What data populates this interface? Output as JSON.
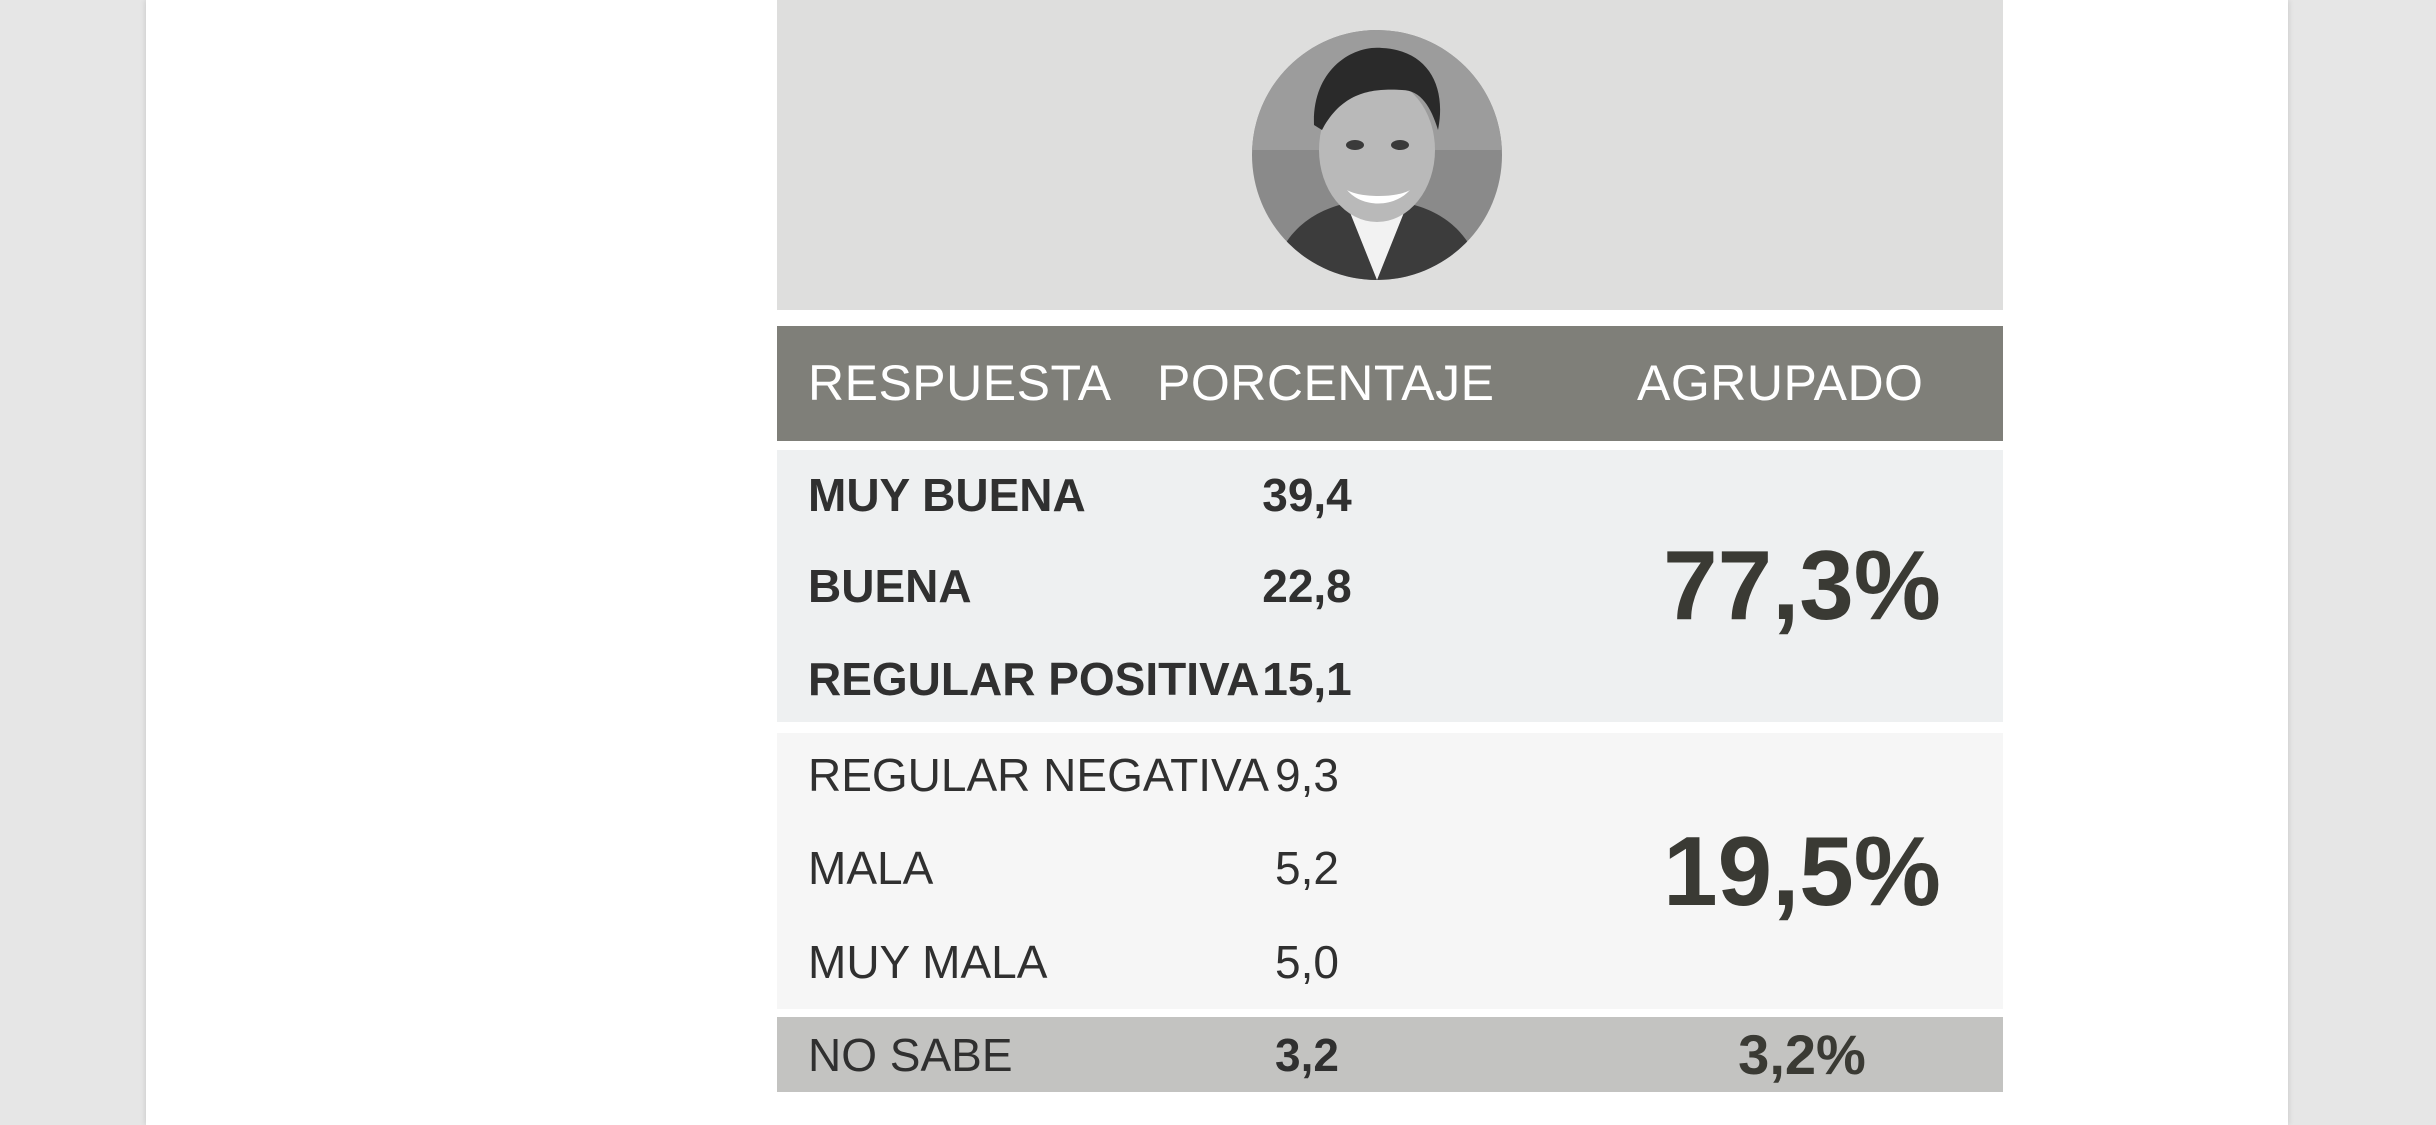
{
  "table": {
    "headers": {
      "respuesta": "RESPUESTA",
      "porcentaje": "PORCENTAJE",
      "agrupado": "AGRUPADO"
    },
    "groups": [
      {
        "rows": [
          {
            "label": "MUY BUENA",
            "value": "39,4"
          },
          {
            "label": "BUENA",
            "value": "22,8"
          },
          {
            "label": "REGULAR POSITIVA",
            "value": "15,1"
          }
        ],
        "grouped": "77,3%"
      },
      {
        "rows": [
          {
            "label": "REGULAR NEGATIVA",
            "value": "9,3"
          },
          {
            "label": "MALA",
            "value": "5,2"
          },
          {
            "label": "MUY MALA",
            "value": "5,0"
          }
        ],
        "grouped": "19,5%"
      },
      {
        "rows": [
          {
            "label": "NO SABE",
            "value": "3,2"
          }
        ],
        "grouped": "3,2%"
      }
    ]
  },
  "colors": {
    "header_bg": "#7f7f79",
    "positive_bg": "#eef0f1",
    "negative_bg": "#f6f6f6",
    "no_sabe_bg": "#c3c3c1",
    "photo_bg": "#dededd"
  },
  "icons": {
    "avatar": "person-portrait-icon"
  }
}
